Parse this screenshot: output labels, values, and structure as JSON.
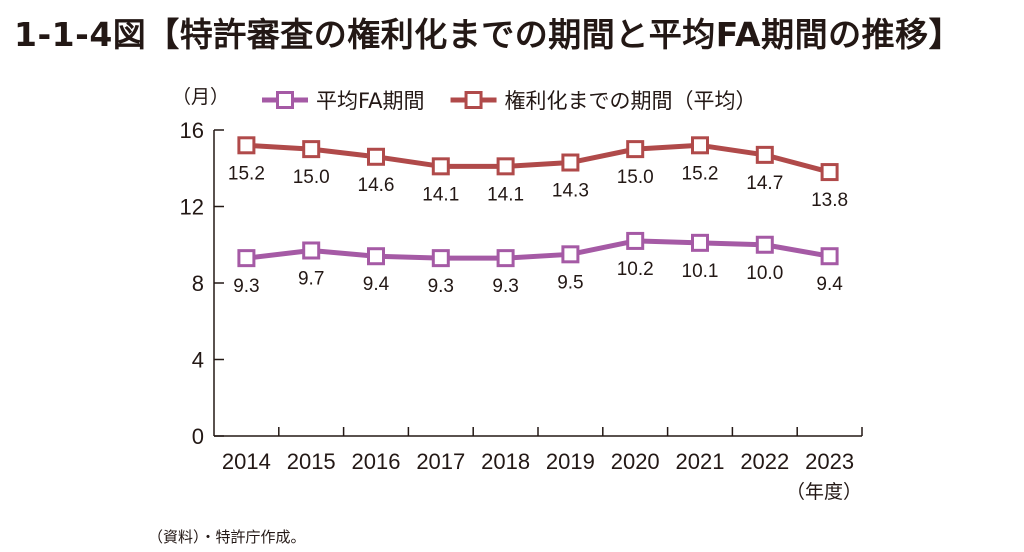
{
  "title": "1-1-4図【特許審査の権利化までの期間と平均FA期間の推移】",
  "source": "（資料）・特許庁作成。",
  "colors": {
    "fa": "#a55aa5",
    "grant": "#b04a4a",
    "axis": "#231815"
  },
  "chart_data": {
    "type": "line",
    "y_unit": "（月）",
    "x_unit": "（年度）",
    "ylim": [
      0,
      16
    ],
    "yticks": [
      0,
      4,
      8,
      12,
      16
    ],
    "categories": [
      "2014",
      "2015",
      "2016",
      "2017",
      "2018",
      "2019",
      "2020",
      "2021",
      "2022",
      "2023"
    ],
    "legend_position": "top",
    "series": [
      {
        "name": "平均FA期間",
        "color": "#a55aa5",
        "values": [
          9.3,
          9.7,
          9.4,
          9.3,
          9.3,
          9.5,
          10.2,
          10.1,
          10.0,
          9.4
        ],
        "labels": [
          "9.3",
          "9.7",
          "9.4",
          "9.3",
          "9.3",
          "9.5",
          "10.2",
          "10.1",
          "10.0",
          "9.4"
        ]
      },
      {
        "name": "権利化までの期間（平均）",
        "color": "#b04a4a",
        "values": [
          15.2,
          15.0,
          14.6,
          14.1,
          14.1,
          14.3,
          15.0,
          15.2,
          14.7,
          13.8
        ],
        "labels": [
          "15.2",
          "15.0",
          "14.6",
          "14.1",
          "14.1",
          "14.3",
          "15.0",
          "15.2",
          "14.7",
          "13.8"
        ]
      }
    ]
  }
}
